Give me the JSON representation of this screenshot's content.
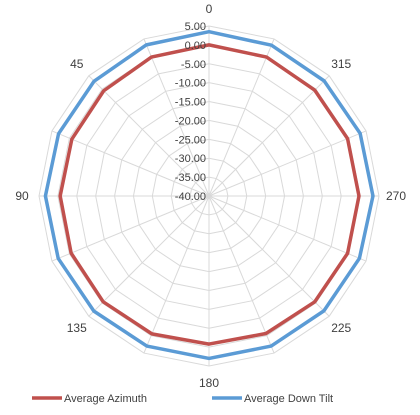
{
  "chart_data": {
    "type": "radar",
    "title": "",
    "angular_direction": "counterclockwise",
    "angular_start": "top",
    "angles": [
      0,
      22.5,
      45,
      67.5,
      90,
      112.5,
      135,
      157.5,
      180,
      202.5,
      225,
      247.5,
      270,
      292.5,
      315,
      337.5
    ],
    "angle_labels": [
      "0",
      "45",
      "90",
      "135",
      "180",
      "225",
      "270",
      "315"
    ],
    "radial_ticks": [
      "5.00",
      "0.00",
      "-5.00",
      "-10.00",
      "-15.00",
      "-20.00",
      "-25.00",
      "-30.00",
      "-35.00",
      "-40.00"
    ],
    "radial_range": [
      -40,
      5
    ],
    "radial_step": 5,
    "grid": true,
    "legend_position": "bottom",
    "series": [
      {
        "name": "Average Azimuth",
        "color": "#c0504d",
        "values": [
          0.0,
          -0.2,
          -0.6,
          -0.7,
          -0.6,
          -0.5,
          -0.4,
          -0.5,
          -0.8,
          -0.6,
          -0.4,
          -0.3,
          -0.3,
          -0.3,
          -0.4,
          -0.2
        ]
      },
      {
        "name": "Average Down Tilt",
        "color": "#5b9bd5",
        "values": [
          3.5,
          3.3,
          3.0,
          3.1,
          3.3,
          3.2,
          3.1,
          3.0,
          3.0,
          3.0,
          3.0,
          3.1,
          3.4,
          3.3,
          3.1,
          3.2
        ]
      }
    ]
  }
}
